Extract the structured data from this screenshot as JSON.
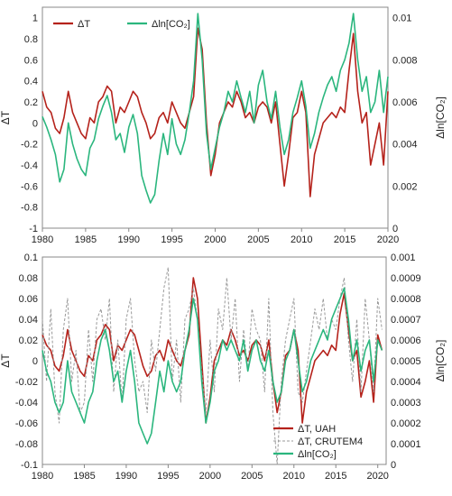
{
  "chart_data": [
    {
      "type": "line",
      "title": "",
      "xlabel": "",
      "ylabel_left": "ΔT",
      "ylabel_right": "Δln[CO₂]",
      "xlim": [
        1980,
        2020
      ],
      "ylim_left": [
        -1,
        1.1
      ],
      "ylim_right": [
        0,
        0.0105
      ],
      "x_ticks": [
        "1980",
        "1985",
        "1990",
        "1995",
        "2000",
        "2005",
        "2010",
        "2015",
        "2020"
      ],
      "y_left_ticks": [
        "1",
        "0.8",
        "0.6",
        "0.4",
        "0.2",
        "0",
        "-0.2",
        "-0.4",
        "-0.6",
        "-0.8",
        "-1"
      ],
      "y_right_ticks": [
        "0.01",
        "0.008",
        "0.006",
        "0.004",
        "0.002",
        "0"
      ],
      "legend": {
        "placement": "top-left",
        "entries": [
          "ΔT",
          "Δln[CO₂]"
        ]
      },
      "series": [
        {
          "name": "ΔT",
          "color": "#b5221b",
          "axis": "left",
          "x": [
            1980,
            1980.5,
            1981,
            1981.5,
            1982,
            1982.5,
            1983,
            1983.5,
            1984,
            1984.5,
            1985,
            1985.5,
            1986,
            1986.5,
            1987,
            1987.5,
            1988,
            1988.5,
            1989,
            1989.5,
            1990,
            1990.5,
            1991,
            1991.5,
            1992,
            1992.5,
            1993,
            1993.5,
            1994,
            1994.5,
            1995,
            1995.5,
            1996,
            1996.5,
            1997,
            1997.5,
            1998,
            1998.5,
            1999,
            1999.5,
            2000,
            2000.5,
            2001,
            2001.5,
            2002,
            2002.5,
            2003,
            2003.5,
            2004,
            2004.5,
            2005,
            2005.5,
            2006,
            2006.5,
            2007,
            2007.5,
            2008,
            2008.5,
            2009,
            2009.5,
            2010,
            2010.5,
            2011,
            2011.5,
            2012,
            2012.5,
            2013,
            2013.5,
            2014,
            2014.5,
            2015,
            2015.5,
            2016,
            2016.5,
            2017,
            2017.5,
            2018,
            2018.5,
            2019,
            2019.5,
            2020
          ],
          "y": [
            0.3,
            0.15,
            0.1,
            -0.05,
            -0.1,
            0.05,
            0.3,
            0.1,
            0.0,
            -0.1,
            -0.15,
            0.05,
            0.0,
            0.2,
            0.25,
            0.35,
            0.3,
            0.0,
            0.15,
            0.1,
            0.2,
            0.3,
            0.25,
            0.1,
            0.0,
            -0.15,
            -0.1,
            0.05,
            0.1,
            0.0,
            0.2,
            0.1,
            0.0,
            -0.05,
            0.1,
            0.25,
            0.9,
            0.7,
            0.0,
            -0.5,
            -0.3,
            0.0,
            0.1,
            0.2,
            0.15,
            0.3,
            0.2,
            0.05,
            0.1,
            0.0,
            0.15,
            0.2,
            0.15,
            0.0,
            0.2,
            -0.2,
            -0.6,
            -0.3,
            0.05,
            0.1,
            0.3,
            0.1,
            -0.7,
            -0.3,
            -0.15,
            0.0,
            0.05,
            0.1,
            0.05,
            0.15,
            0.1,
            0.5,
            0.85,
            0.3,
            0.0,
            0.1,
            -0.4,
            -0.2,
            0.0,
            -0.4,
            0.3
          ]
        },
        {
          "name": "Δln[CO₂]",
          "color": "#2bb67e",
          "axis": "right",
          "x": [
            1980,
            1980.5,
            1981,
            1981.5,
            1982,
            1982.5,
            1983,
            1983.5,
            1984,
            1984.5,
            1985,
            1985.5,
            1986,
            1986.5,
            1987,
            1987.5,
            1988,
            1988.5,
            1989,
            1989.5,
            1990,
            1990.5,
            1991,
            1991.5,
            1992,
            1992.5,
            1993,
            1993.5,
            1994,
            1994.5,
            1995,
            1995.5,
            1996,
            1996.5,
            1997,
            1997.5,
            1998,
            1998.5,
            1999,
            1999.5,
            2000,
            2000.5,
            2001,
            2001.5,
            2002,
            2002.5,
            2003,
            2003.5,
            2004,
            2004.5,
            2005,
            2005.5,
            2006,
            2006.5,
            2007,
            2007.5,
            2008,
            2008.5,
            2009,
            2009.5,
            2010,
            2010.5,
            2011,
            2011.5,
            2012,
            2012.5,
            2013,
            2013.5,
            2014,
            2014.5,
            2015,
            2015.5,
            2016,
            2016.5,
            2017,
            2017.5,
            2018,
            2018.5,
            2019,
            2019.5,
            2020
          ],
          "y": [
            0.0053,
            0.0048,
            0.0042,
            0.0035,
            0.0022,
            0.0028,
            0.005,
            0.004,
            0.0033,
            0.0028,
            0.0025,
            0.0038,
            0.0042,
            0.0052,
            0.0058,
            0.0063,
            0.0055,
            0.0042,
            0.0045,
            0.0036,
            0.0048,
            0.0054,
            0.0045,
            0.0025,
            0.0018,
            0.0012,
            0.0016,
            0.0032,
            0.0045,
            0.0035,
            0.0052,
            0.004,
            0.0035,
            0.0042,
            0.0055,
            0.007,
            0.0102,
            0.008,
            0.0045,
            0.0028,
            0.0038,
            0.0048,
            0.0055,
            0.0065,
            0.006,
            0.007,
            0.0062,
            0.0055,
            0.0065,
            0.005,
            0.0068,
            0.0075,
            0.006,
            0.0052,
            0.0065,
            0.0048,
            0.0035,
            0.0042,
            0.0055,
            0.0062,
            0.007,
            0.0058,
            0.0038,
            0.0045,
            0.0055,
            0.0062,
            0.0068,
            0.0072,
            0.0065,
            0.0075,
            0.008,
            0.0088,
            0.0102,
            0.008,
            0.0065,
            0.0072,
            0.0055,
            0.006,
            0.0075,
            0.0055,
            0.0072
          ]
        }
      ]
    },
    {
      "type": "line",
      "title": "",
      "xlabel": "",
      "ylabel_left": "ΔT",
      "ylabel_right": "Δln[CO₂]",
      "xlim": [
        1980,
        2021
      ],
      "ylim_left": [
        -0.1,
        0.1
      ],
      "ylim_right": [
        0,
        0.001
      ],
      "x_ticks": [
        "1980",
        "1985",
        "1990",
        "1995",
        "2000",
        "2005",
        "2010",
        "2015",
        "2020"
      ],
      "y_left_ticks": [
        "0.1",
        "0.08",
        "0.06",
        "0.04",
        "0.02",
        "0",
        "-0.02",
        "-0.04",
        "-0.06",
        "-0.08",
        "-0.1"
      ],
      "y_right_ticks": [
        "0.001",
        "0.0009",
        "0.0008",
        "0.0007",
        "0.0006",
        "0.0005",
        "0.0004",
        "0.0003",
        "0.0002",
        "0.0001",
        "0"
      ],
      "legend": {
        "placement": "bottom-right",
        "entries": [
          "ΔT, UAH",
          "ΔT, CRUTEM4",
          "Δln[CO₂]"
        ]
      },
      "series": [
        {
          "name": "ΔT, UAH",
          "color": "#b5221b",
          "axis": "left",
          "x": [
            1980,
            1980.5,
            1981,
            1981.5,
            1982,
            1982.5,
            1983,
            1983.5,
            1984,
            1984.5,
            1985,
            1985.5,
            1986,
            1986.5,
            1987,
            1987.5,
            1988,
            1988.5,
            1989,
            1989.5,
            1990,
            1990.5,
            1991,
            1991.5,
            1992,
            1992.5,
            1993,
            1993.5,
            1994,
            1994.5,
            1995,
            1995.5,
            1996,
            1996.5,
            1997,
            1997.5,
            1998,
            1998.5,
            1999,
            1999.5,
            2000,
            2000.5,
            2001,
            2001.5,
            2002,
            2002.5,
            2003,
            2003.5,
            2004,
            2004.5,
            2005,
            2005.5,
            2006,
            2006.5,
            2007,
            2007.5,
            2008,
            2008.5,
            2009,
            2009.5,
            2010,
            2010.5,
            2011,
            2011.5,
            2012,
            2012.5,
            2013,
            2013.5,
            2014,
            2014.5,
            2015,
            2015.5,
            2016,
            2016.5,
            2017,
            2017.5,
            2018,
            2018.5,
            2019,
            2019.5,
            2020,
            2020.5
          ],
          "y": [
            0.025,
            0.015,
            0.01,
            -0.005,
            -0.01,
            0.005,
            0.03,
            0.01,
            0.0,
            -0.01,
            -0.015,
            0.005,
            0.0,
            0.02,
            0.025,
            0.035,
            0.03,
            0.0,
            0.015,
            0.01,
            0.02,
            0.03,
            0.025,
            0.01,
            -0.005,
            -0.015,
            -0.01,
            0.005,
            0.01,
            0.0,
            0.02,
            0.01,
            0.0,
            -0.005,
            0.01,
            0.025,
            0.08,
            0.06,
            0.0,
            -0.06,
            -0.035,
            0.0,
            0.01,
            0.02,
            0.015,
            0.03,
            0.02,
            0.005,
            0.01,
            0.0,
            0.015,
            0.02,
            0.015,
            0.0,
            0.02,
            -0.02,
            -0.05,
            -0.03,
            0.005,
            0.01,
            0.03,
            0.01,
            -0.06,
            -0.03,
            -0.015,
            0.0,
            0.005,
            0.01,
            0.005,
            0.015,
            0.01,
            0.045,
            0.065,
            0.03,
            0.0,
            0.01,
            -0.035,
            -0.02,
            0.0,
            -0.04,
            0.025,
            0.01
          ]
        },
        {
          "name": "ΔT, CRUTEM4",
          "color": "#999999",
          "axis": "left",
          "x": [
            1980,
            1980.5,
            1981,
            1981.5,
            1982,
            1982.5,
            1983,
            1983.5,
            1984,
            1984.5,
            1985,
            1985.5,
            1986,
            1986.5,
            1987,
            1987.5,
            1988,
            1988.5,
            1989,
            1989.5,
            1990,
            1990.5,
            1991,
            1991.5,
            1992,
            1992.5,
            1993,
            1993.5,
            1994,
            1994.5,
            1995,
            1995.5,
            1996,
            1996.5,
            1997,
            1997.5,
            1998,
            1998.5,
            1999,
            1999.5,
            2000,
            2000.5,
            2001,
            2001.5,
            2002,
            2002.5,
            2003,
            2003.5,
            2004,
            2004.5,
            2005,
            2005.5,
            2006,
            2006.5,
            2007,
            2007.5,
            2008,
            2008.5,
            2009,
            2009.5,
            2010,
            2010.5,
            2011,
            2011.5,
            2012,
            2012.5,
            2013,
            2013.5,
            2014,
            2014.5,
            2015,
            2015.5,
            2016,
            2016.5,
            2017,
            2017.5,
            2018,
            2018.5,
            2019,
            2019.5,
            2020,
            2020.5
          ],
          "y": [
            0.04,
            -0.02,
            0.05,
            -0.03,
            -0.06,
            0.03,
            0.06,
            -0.02,
            0.01,
            -0.05,
            -0.04,
            0.03,
            -0.02,
            0.04,
            0.05,
            0.02,
            0.06,
            -0.03,
            0.02,
            -0.04,
            0.04,
            0.06,
            0.0,
            -0.03,
            -0.02,
            -0.05,
            0.02,
            -0.01,
            0.03,
            0.07,
            0.09,
            -0.02,
            0.02,
            -0.04,
            0.04,
            0.05,
            0.07,
            0.04,
            -0.01,
            -0.05,
            0.02,
            -0.03,
            0.05,
            0.03,
            0.08,
            0.02,
            0.06,
            -0.02,
            0.03,
            -0.01,
            0.05,
            0.03,
            0.02,
            -0.03,
            0.06,
            -0.05,
            -0.1,
            -0.02,
            0.02,
            0.04,
            0.06,
            -0.03,
            -0.04,
            -0.01,
            0.02,
            0.05,
            0.03,
            0.06,
            0.02,
            0.04,
            0.03,
            0.06,
            0.08,
            0.02,
            -0.02,
            0.04,
            -0.03,
            0.06,
            0.02,
            -0.03,
            0.06,
            0.03
          ]
        },
        {
          "name": "Δln[CO₂]",
          "color": "#2bb67e",
          "axis": "right",
          "x": [
            1980,
            1980.5,
            1981,
            1981.5,
            1982,
            1982.5,
            1983,
            1983.5,
            1984,
            1984.5,
            1985,
            1985.5,
            1986,
            1986.5,
            1987,
            1987.5,
            1988,
            1988.5,
            1989,
            1989.5,
            1990,
            1990.5,
            1991,
            1991.5,
            1992,
            1992.5,
            1993,
            1993.5,
            1994,
            1994.5,
            1995,
            1995.5,
            1996,
            1996.5,
            1997,
            1997.5,
            1998,
            1998.5,
            1999,
            1999.5,
            2000,
            2000.5,
            2001,
            2001.5,
            2002,
            2002.5,
            2003,
            2003.5,
            2004,
            2004.5,
            2005,
            2005.5,
            2006,
            2006.5,
            2007,
            2007.5,
            2008,
            2008.5,
            2009,
            2009.5,
            2010,
            2010.5,
            2011,
            2011.5,
            2012,
            2012.5,
            2013,
            2013.5,
            2014,
            2014.5,
            2015,
            2015.5,
            2016,
            2016.5,
            2017,
            2017.5,
            2018,
            2018.5,
            2019,
            2019.5,
            2020,
            2020.5
          ],
          "y": [
            0.00055,
            0.00045,
            0.0004,
            0.0003,
            0.00025,
            0.0003,
            0.0005,
            0.00035,
            0.0003,
            0.00025,
            0.0002,
            0.0003,
            0.00035,
            0.0005,
            0.0006,
            0.00065,
            0.00055,
            0.0004,
            0.00045,
            0.0003,
            0.00045,
            0.00055,
            0.0004,
            0.0002,
            0.00015,
            0.0001,
            0.00015,
            0.0003,
            0.00045,
            0.00035,
            0.0005,
            0.0004,
            0.00035,
            0.0004,
            0.00055,
            0.00065,
            0.0008,
            0.0007,
            0.0004,
            0.0002,
            0.0003,
            0.00045,
            0.0005,
            0.0006,
            0.00055,
            0.0006,
            0.00055,
            0.0005,
            0.0006,
            0.00045,
            0.00055,
            0.0006,
            0.0005,
            0.00045,
            0.00055,
            0.0004,
            0.0003,
            0.00035,
            0.0005,
            0.00055,
            0.00065,
            0.0005,
            0.00035,
            0.0004,
            0.0005,
            0.00055,
            0.0006,
            0.00065,
            0.0006,
            0.0007,
            0.00075,
            0.0008,
            0.00085,
            0.0007,
            0.0005,
            0.0006,
            0.00045,
            0.00055,
            0.0006,
            0.0004,
            0.0006,
            0.00055
          ]
        }
      ]
    }
  ]
}
